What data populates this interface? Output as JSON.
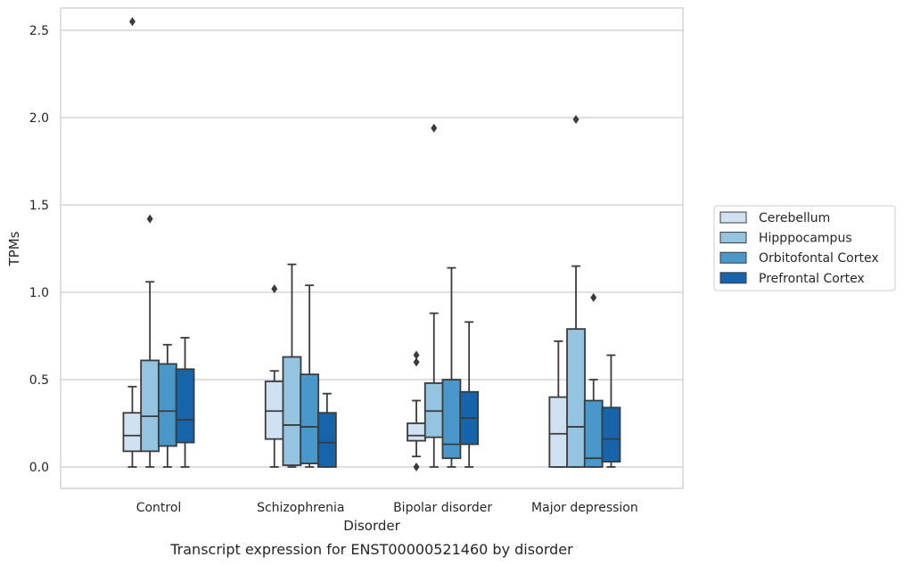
{
  "chart_data": {
    "type": "box",
    "title": "",
    "caption": "Transcript expression for ENST00000521460 by disorder",
    "xlabel": "Disorder",
    "ylabel": "TPMs",
    "ylim": [
      -0.12,
      2.68
    ],
    "yticks": [
      0.0,
      0.5,
      1.0,
      1.5,
      2.0,
      2.5
    ],
    "ytick_labels": [
      "0.0",
      "0.5",
      "1.0",
      "1.5",
      "2.0",
      "2.5"
    ],
    "categories": [
      "Control",
      "Schizophrenia",
      "Bipolar disorder",
      "Major depression"
    ],
    "grid": "horizontal",
    "legend_position": "right",
    "series": [
      {
        "name": "Cerebellum",
        "color": "#d0e1f2",
        "boxes": [
          {
            "whislo": 0.0,
            "q1": 0.09,
            "med": 0.18,
            "q3": 0.31,
            "whishi": 0.46,
            "fliers": [
              2.55
            ]
          },
          {
            "whislo": 0.0,
            "q1": 0.16,
            "med": 0.32,
            "q3": 0.49,
            "whishi": 0.55,
            "fliers": [
              1.02
            ]
          },
          {
            "whislo": 0.06,
            "q1": 0.15,
            "med": 0.18,
            "q3": 0.25,
            "whishi": 0.38,
            "fliers": [
              0.0,
              0.6,
              0.64
            ]
          },
          {
            "whislo": 0.0,
            "q1": 0.0,
            "med": 0.19,
            "q3": 0.4,
            "whishi": 0.72,
            "fliers": []
          }
        ]
      },
      {
        "name": "Hipppocampus",
        "color": "#94c4df",
        "boxes": [
          {
            "whislo": 0.0,
            "q1": 0.09,
            "med": 0.29,
            "q3": 0.61,
            "whishi": 1.06,
            "fliers": [
              1.42
            ]
          },
          {
            "whislo": 0.0,
            "q1": 0.01,
            "med": 0.24,
            "q3": 0.63,
            "whishi": 1.16,
            "fliers": []
          },
          {
            "whislo": 0.0,
            "q1": 0.17,
            "med": 0.32,
            "q3": 0.48,
            "whishi": 0.88,
            "fliers": [
              1.94
            ]
          },
          {
            "whislo": 0.0,
            "q1": 0.0,
            "med": 0.23,
            "q3": 0.79,
            "whishi": 1.15,
            "fliers": [
              1.99
            ]
          }
        ]
      },
      {
        "name": "Orbitofontal Cortex",
        "color": "#4a98c9",
        "boxes": [
          {
            "whislo": 0.0,
            "q1": 0.12,
            "med": 0.32,
            "q3": 0.59,
            "whishi": 0.7,
            "fliers": []
          },
          {
            "whislo": 0.0,
            "q1": 0.02,
            "med": 0.23,
            "q3": 0.53,
            "whishi": 1.04,
            "fliers": []
          },
          {
            "whislo": 0.0,
            "q1": 0.05,
            "med": 0.13,
            "q3": 0.5,
            "whishi": 1.14,
            "fliers": []
          },
          {
            "whislo": 0.0,
            "q1": 0.0,
            "med": 0.05,
            "q3": 0.38,
            "whishi": 0.5,
            "fliers": [
              0.97
            ]
          }
        ]
      },
      {
        "name": "Prefrontal Cortex",
        "color": "#1764ab",
        "boxes": [
          {
            "whislo": 0.0,
            "q1": 0.14,
            "med": 0.27,
            "q3": 0.56,
            "whishi": 0.74,
            "fliers": []
          },
          {
            "whislo": 0.0,
            "q1": 0.0,
            "med": 0.14,
            "q3": 0.31,
            "whishi": 0.42,
            "fliers": []
          },
          {
            "whislo": 0.0,
            "q1": 0.13,
            "med": 0.28,
            "q3": 0.43,
            "whishi": 0.83,
            "fliers": []
          },
          {
            "whislo": 0.0,
            "q1": 0.03,
            "med": 0.16,
            "q3": 0.34,
            "whishi": 0.64,
            "fliers": []
          }
        ]
      }
    ]
  }
}
